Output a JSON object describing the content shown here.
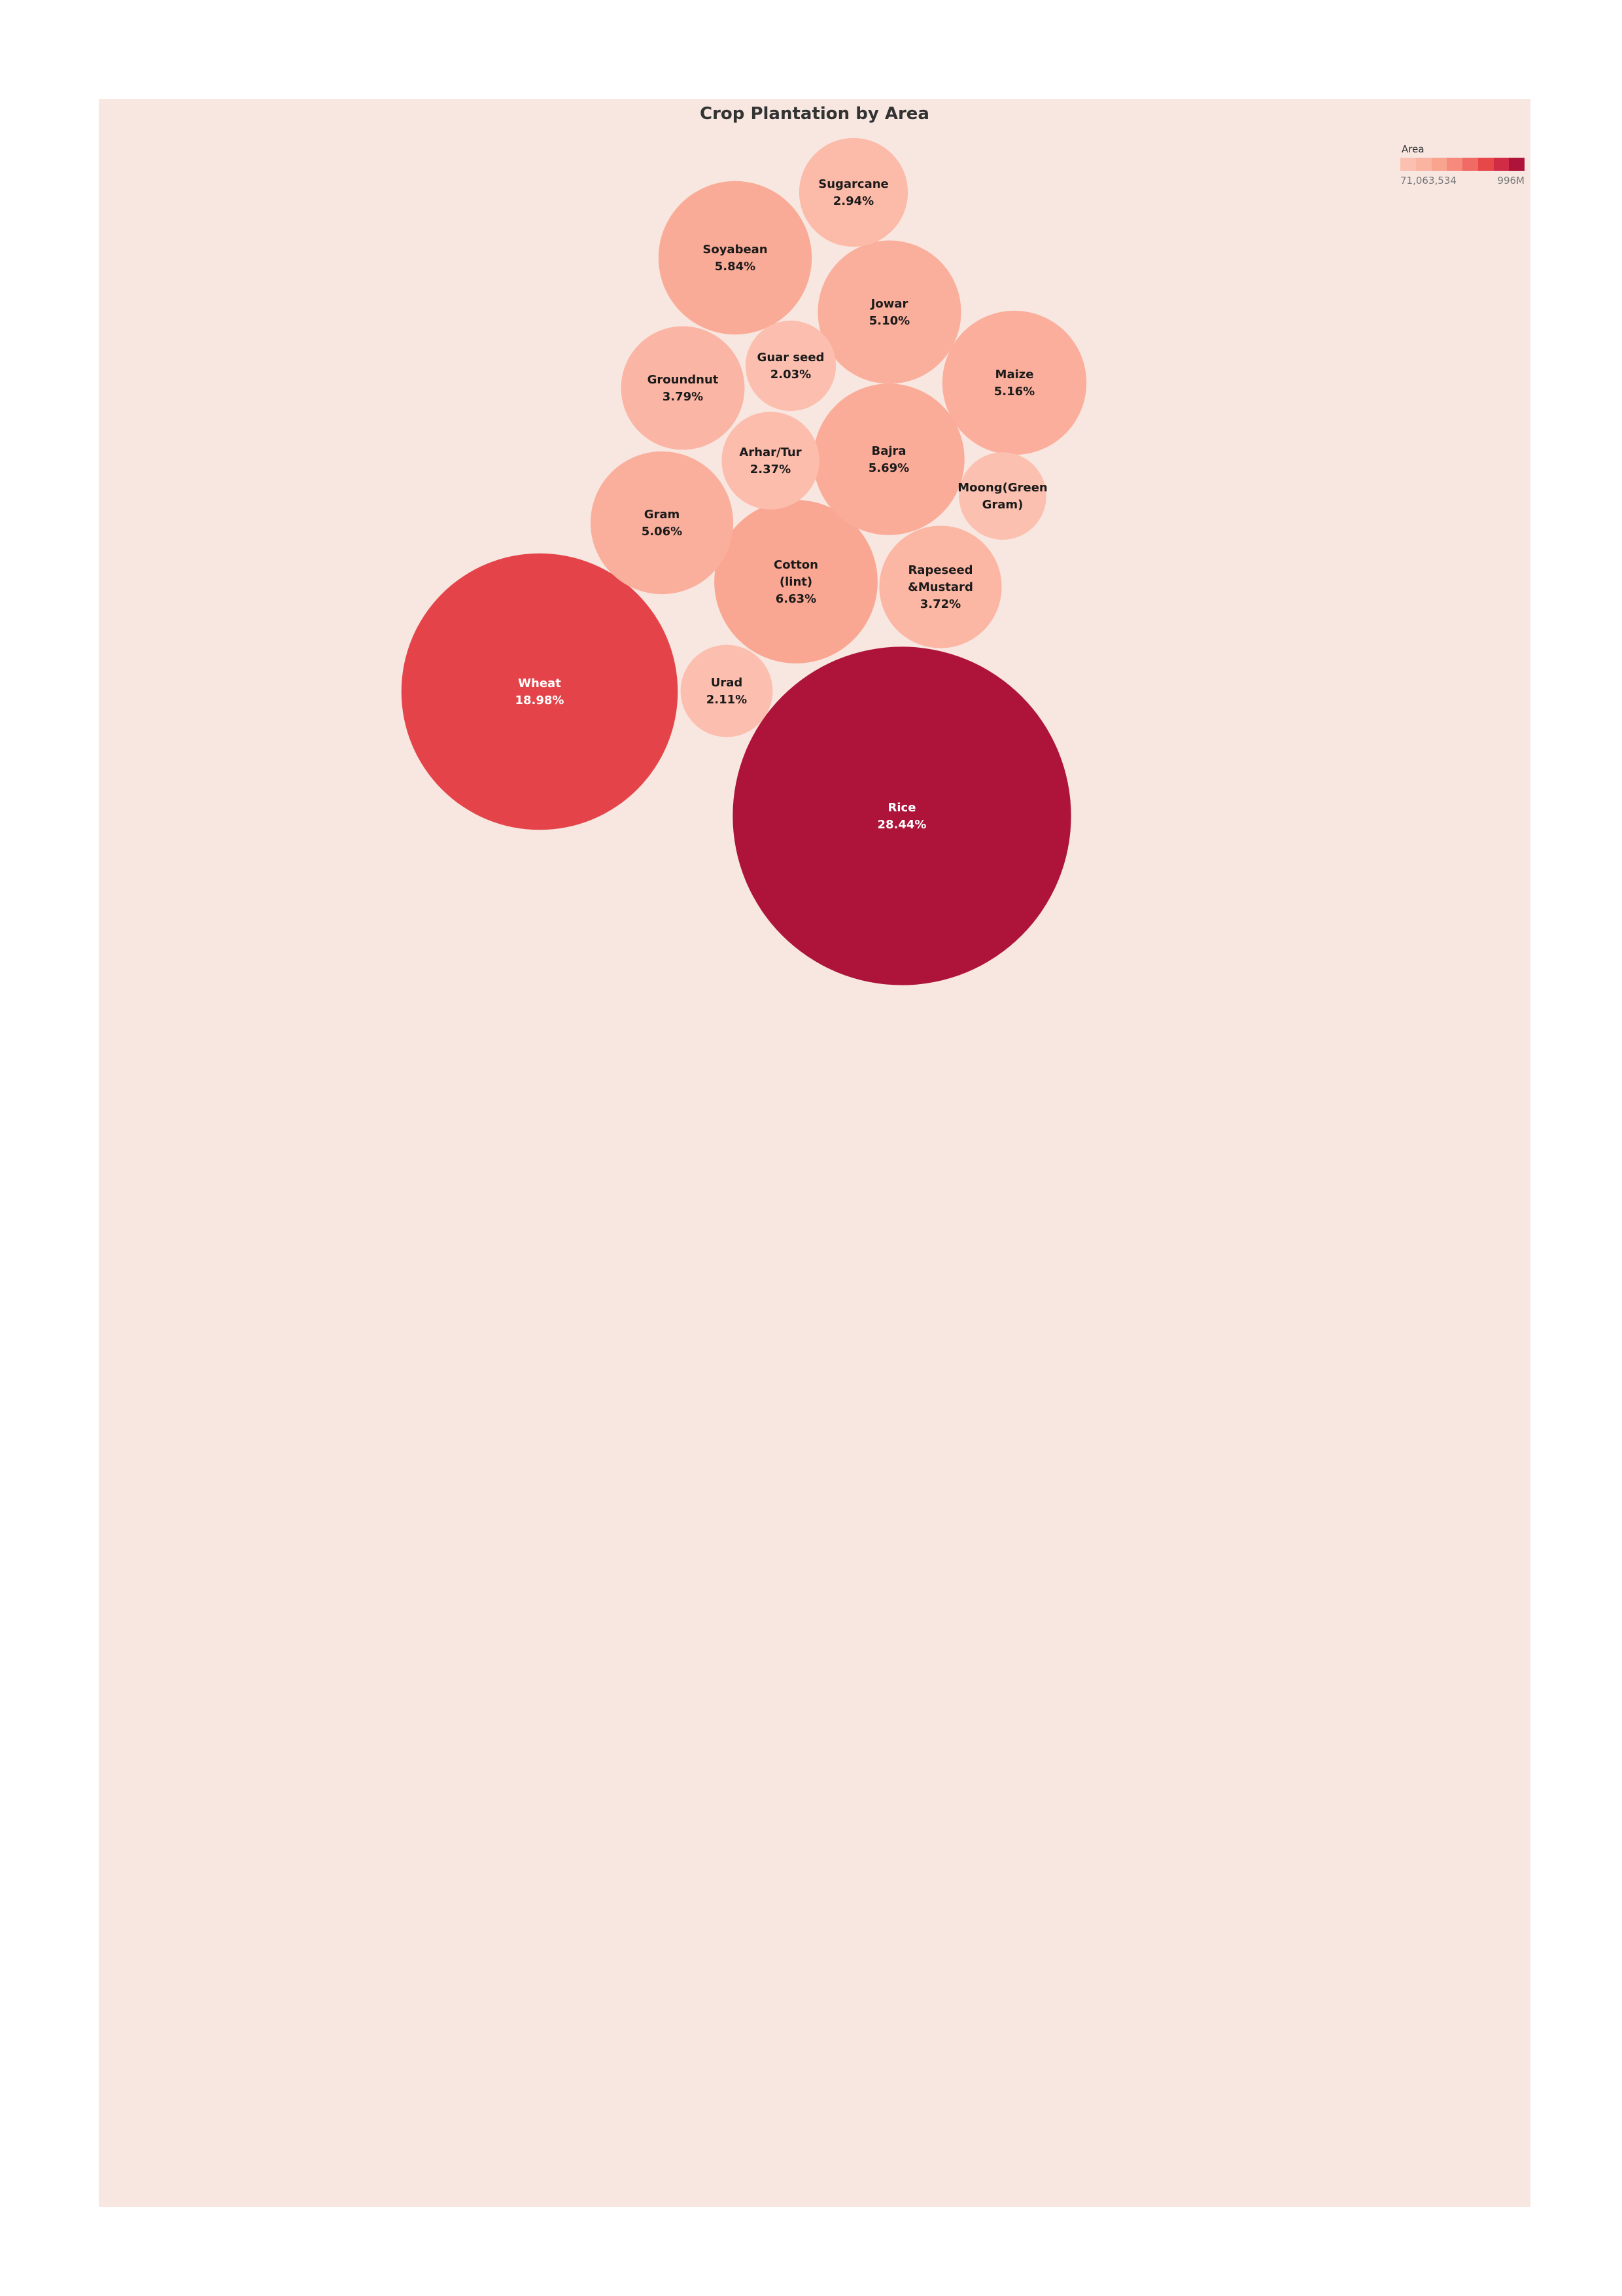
{
  "chart_data": {
    "type": "bubble",
    "title": "Crop Plantation by Area",
    "legend": {
      "title": "Area",
      "min_label": "71,063,534",
      "max_label": "996M",
      "placement": "top-right"
    },
    "color_scale": [
      "#fcc0b0",
      "#fbb4a2",
      "#f9a48f",
      "#f58a7d",
      "#ef6b63",
      "#e8474a",
      "#d12c45",
      "#ae133a"
    ],
    "bubbles": [
      {
        "crop": "Rice",
        "share": "28.44%",
        "share_value": 28.44
      },
      {
        "crop": "Wheat",
        "share": "18.98%",
        "share_value": 18.98
      },
      {
        "crop": "Cotton(lint)",
        "share": "6.63%",
        "share_value": 6.63
      },
      {
        "crop": "Soyabean",
        "share": "5.84%",
        "share_value": 5.84
      },
      {
        "crop": "Bajra",
        "share": "5.69%",
        "share_value": 5.69
      },
      {
        "crop": "Maize",
        "share": "5.16%",
        "share_value": 5.16
      },
      {
        "crop": "Jowar",
        "share": "5.10%",
        "share_value": 5.1
      },
      {
        "crop": "Gram",
        "share": "5.06%",
        "share_value": 5.06
      },
      {
        "crop": "Groundnut",
        "share": "3.79%",
        "share_value": 3.79
      },
      {
        "crop": "Rapeseed &Mustard",
        "share": "3.72%",
        "share_value": 3.72
      },
      {
        "crop": "Sugarcane",
        "share": "2.94%",
        "share_value": 2.94
      },
      {
        "crop": "Arhar/Tur",
        "share": "2.37%",
        "share_value": 2.37
      },
      {
        "crop": "Urad",
        "share": "2.11%",
        "share_value": 2.11
      },
      {
        "crop": "Guar seed",
        "share": "2.03%",
        "share_value": 2.03
      },
      {
        "crop": "Moong(Green Gram)",
        "share": "",
        "share_value": 1.9
      }
    ]
  }
}
